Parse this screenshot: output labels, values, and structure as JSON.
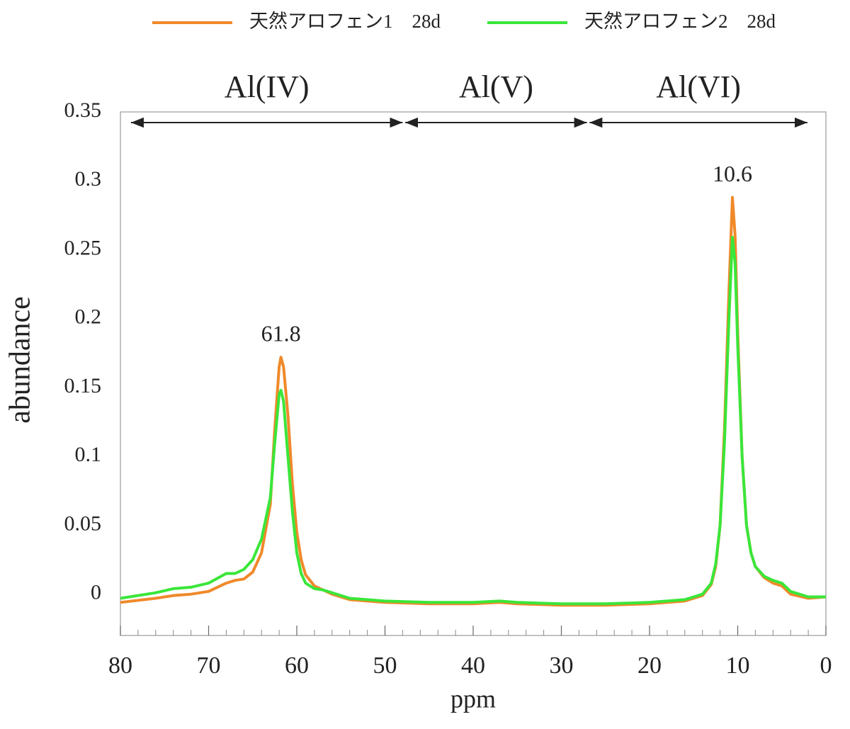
{
  "chart_data": {
    "type": "line",
    "xlabel": "ppm",
    "ylabel": "abundance",
    "x": [
      80,
      76,
      74,
      72,
      70,
      68,
      67,
      66,
      65,
      64,
      63,
      62.5,
      62,
      61.8,
      61.5,
      61,
      60.5,
      60,
      59.5,
      59,
      58,
      57,
      56,
      54,
      52,
      50,
      45,
      40,
      37,
      35,
      30,
      25,
      20,
      16,
      14,
      13,
      12.5,
      12,
      11.5,
      11,
      10.6,
      10.3,
      10,
      9.5,
      9,
      8.5,
      8,
      7,
      6,
      5,
      4,
      2,
      0
    ],
    "series": [
      {
        "name": "天然アロフェン1　28d",
        "color": "#f0892a",
        "values": [
          -0.006,
          -0.003,
          -0.001,
          0.0,
          0.002,
          0.008,
          0.01,
          0.011,
          0.016,
          0.03,
          0.065,
          0.12,
          0.165,
          0.172,
          0.165,
          0.13,
          0.08,
          0.045,
          0.025,
          0.014,
          0.006,
          0.003,
          0.0,
          -0.004,
          -0.005,
          -0.006,
          -0.007,
          -0.007,
          -0.006,
          -0.007,
          -0.008,
          -0.008,
          -0.007,
          -0.005,
          -0.001,
          0.007,
          0.02,
          0.05,
          0.12,
          0.22,
          0.288,
          0.26,
          0.19,
          0.1,
          0.05,
          0.03,
          0.02,
          0.012,
          0.008,
          0.006,
          0.0,
          -0.003,
          -0.002
        ]
      },
      {
        "name": "天然アロフェン2　28d",
        "color": "#3ae63a",
        "values": [
          -0.003,
          0.001,
          0.004,
          0.005,
          0.008,
          0.015,
          0.015,
          0.018,
          0.025,
          0.04,
          0.07,
          0.11,
          0.145,
          0.148,
          0.14,
          0.1,
          0.06,
          0.03,
          0.015,
          0.008,
          0.004,
          0.003,
          0.001,
          -0.003,
          -0.004,
          -0.005,
          -0.006,
          -0.006,
          -0.005,
          -0.006,
          -0.007,
          -0.007,
          -0.006,
          -0.004,
          0.0,
          0.008,
          0.022,
          0.05,
          0.11,
          0.2,
          0.259,
          0.24,
          0.18,
          0.1,
          0.05,
          0.03,
          0.02,
          0.013,
          0.01,
          0.008,
          0.002,
          -0.002,
          -0.002
        ]
      }
    ],
    "xlim": [
      80,
      0
    ],
    "xticks": [
      80,
      70,
      60,
      50,
      40,
      30,
      20,
      10,
      0
    ],
    "xminorticks": [
      78,
      76,
      74,
      72,
      68,
      66,
      64,
      62,
      58,
      56,
      54,
      52,
      48,
      46,
      44,
      42,
      38,
      36,
      34,
      32,
      28,
      26,
      24,
      22,
      18,
      16,
      14,
      12,
      8,
      6,
      4,
      2
    ],
    "ylim": [
      -0.03,
      0.35
    ],
    "yticks": [
      0,
      0.05,
      0.1,
      0.15,
      0.2,
      0.25,
      0.3,
      0.35
    ],
    "regions": [
      {
        "label": "Al(IV)",
        "from": 78.8,
        "to": 48
      },
      {
        "label": "Al(V)",
        "from": 47.7,
        "to": 27.1
      },
      {
        "label": "Al(VI)",
        "from": 26.8,
        "to": 2.1
      }
    ],
    "annotations": [
      {
        "text": "61.8",
        "x": 61.8
      },
      {
        "text": "10.6",
        "x": 10.6
      }
    ]
  }
}
